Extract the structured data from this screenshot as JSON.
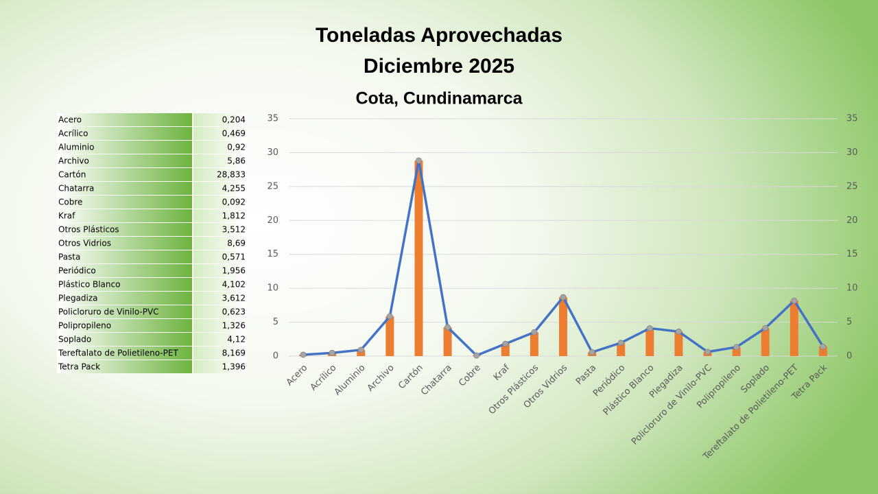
{
  "chart_data": {
    "type": "combo",
    "title": [
      "Toneladas Aprovechadas",
      "Diciembre 2025"
    ],
    "subtitle": "Cota, Cundinamarca",
    "categories": [
      "Acero",
      "Acrílico",
      "Aluminio",
      "Archivo",
      "Cartón",
      "Chatarra",
      "Cobre",
      "Kraf",
      "Otros Plásticos",
      "Otros Vidrios",
      "Pasta",
      "Periódico",
      "Plástico Blanco",
      "Plegadiza",
      "Policloruro de Vinilo-PVC",
      "Polipropileno",
      "Soplado",
      "Tereftalato de Polietileno-PET",
      "Tetra Pack"
    ],
    "series": [
      {
        "type": "bar",
        "color": "#ed7d31",
        "values": [
          0.204,
          0.469,
          0.92,
          5.86,
          28.833,
          4.255,
          0.092,
          1.812,
          3.512,
          8.69,
          0.571,
          1.956,
          4.102,
          3.612,
          0.623,
          1.326,
          4.12,
          8.169,
          1.396
        ]
      },
      {
        "type": "line",
        "color": "#4472c4",
        "axis": "y2",
        "values": [
          0.204,
          0.469,
          0.92,
          5.86,
          28.833,
          4.255,
          0.092,
          1.812,
          3.512,
          8.69,
          0.571,
          1.956,
          4.102,
          3.612,
          0.623,
          1.326,
          4.12,
          8.169,
          1.396
        ]
      }
    ],
    "ylim": [
      0,
      35
    ],
    "yticks": [
      0,
      5,
      10,
      15,
      20,
      25,
      30,
      35
    ],
    "y2lim": [
      0,
      35
    ],
    "y2ticks": [
      0,
      5,
      10,
      15,
      20,
      25,
      30,
      35
    ],
    "grid": true
  },
  "table": {
    "rows": [
      [
        "Acero",
        "0,204"
      ],
      [
        "Acrílico",
        "0,469"
      ],
      [
        "Aluminio",
        "0,92"
      ],
      [
        "Archivo",
        "5,86"
      ],
      [
        "Cartón",
        "28,833"
      ],
      [
        "Chatarra",
        "4,255"
      ],
      [
        "Cobre",
        "0,092"
      ],
      [
        "Kraf",
        "1,812"
      ],
      [
        "Otros Plásticos",
        "3,512"
      ],
      [
        "Otros Vidrios",
        "8,69"
      ],
      [
        "Pasta",
        "0,571"
      ],
      [
        "Periódico",
        "1,956"
      ],
      [
        "Plástico Blanco",
        "4,102"
      ],
      [
        "Plegadiza",
        "3,612"
      ],
      [
        "Policloruro de Vinilo-PVC",
        "0,623"
      ],
      [
        "Polipropileno",
        "1,326"
      ],
      [
        "Soplado",
        "4,12"
      ],
      [
        "Tereftalato de Polietileno-PET",
        "8,169"
      ],
      [
        "Tetra Pack",
        "1,396"
      ]
    ]
  }
}
